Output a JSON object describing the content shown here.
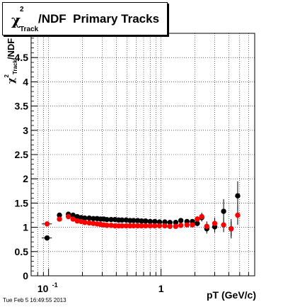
{
  "title": {
    "chi": "χ",
    "sup": "2",
    "sub": "Track",
    "rest": "/NDF  Primary Tracks"
  },
  "xlabel": "pT (GeV/c)",
  "ylabel": {
    "chi": "χ",
    "sup": "2",
    "sub": "Track",
    "rest": "/NDF"
  },
  "timestamp": "Tue Feb  5 16:49:55 2013",
  "chart_data": {
    "type": "scatter",
    "title": "χ2 Track /NDF  Primary Tracks",
    "xlabel": "pT (GeV/c)",
    "ylabel": "χ2 Track /NDF",
    "xscale": "log",
    "xlim": [
      0.07,
      6.8
    ],
    "ylim": [
      0,
      5
    ],
    "grid": true,
    "x_ticks": [
      {
        "value": 0.1,
        "label": "10",
        "exp": "-1"
      },
      {
        "value": 1,
        "label": "1",
        "exp": ""
      }
    ],
    "y_ticks": [
      {
        "value": 0,
        "label": "0"
      },
      {
        "value": 0.5,
        "label": "0.5"
      },
      {
        "value": 1,
        "label": "1"
      },
      {
        "value": 1.5,
        "label": "1.5"
      },
      {
        "value": 2,
        "label": "2"
      },
      {
        "value": 2.5,
        "label": "2.5"
      },
      {
        "value": 3,
        "label": "3"
      },
      {
        "value": 3.5,
        "label": "3.5"
      },
      {
        "value": 4,
        "label": "4"
      },
      {
        "value": 4.5,
        "label": "4.5"
      }
    ],
    "series": [
      {
        "color": "#000000",
        "points": [
          {
            "x": 0.097,
            "y": 0.78,
            "xerr": 0.01
          },
          {
            "x": 0.125,
            "y": 1.25
          },
          {
            "x": 0.15,
            "y": 1.27
          },
          {
            "x": 0.165,
            "y": 1.25
          },
          {
            "x": 0.18,
            "y": 1.22
          },
          {
            "x": 0.195,
            "y": 1.2
          },
          {
            "x": 0.21,
            "y": 1.19
          },
          {
            "x": 0.23,
            "y": 1.19
          },
          {
            "x": 0.25,
            "y": 1.18
          },
          {
            "x": 0.27,
            "y": 1.18
          },
          {
            "x": 0.29,
            "y": 1.17
          },
          {
            "x": 0.31,
            "y": 1.17
          },
          {
            "x": 0.33,
            "y": 1.16
          },
          {
            "x": 0.36,
            "y": 1.16
          },
          {
            "x": 0.39,
            "y": 1.16
          },
          {
            "x": 0.42,
            "y": 1.15
          },
          {
            "x": 0.45,
            "y": 1.15
          },
          {
            "x": 0.49,
            "y": 1.15
          },
          {
            "x": 0.53,
            "y": 1.14
          },
          {
            "x": 0.57,
            "y": 1.14
          },
          {
            "x": 0.62,
            "y": 1.14
          },
          {
            "x": 0.67,
            "y": 1.13
          },
          {
            "x": 0.73,
            "y": 1.13
          },
          {
            "x": 0.8,
            "y": 1.12
          },
          {
            "x": 0.88,
            "y": 1.12
          },
          {
            "x": 0.97,
            "y": 1.11
          },
          {
            "x": 1.08,
            "y": 1.11
          },
          {
            "x": 1.2,
            "y": 1.1
          },
          {
            "x": 1.35,
            "y": 1.1
          },
          {
            "x": 1.5,
            "y": 1.14,
            "yerr": 0.04
          },
          {
            "x": 1.7,
            "y": 1.12,
            "yerr": 0.04
          },
          {
            "x": 1.9,
            "y": 1.12,
            "yerr": 0.05
          },
          {
            "x": 2.1,
            "y": 1.08,
            "yerr": 0.06
          },
          {
            "x": 2.3,
            "y": 1.2,
            "yerr": 0.08
          },
          {
            "x": 2.55,
            "y": 0.97,
            "yerr": 0.1
          },
          {
            "x": 3.0,
            "y": 1.01,
            "yerr": 0.12
          },
          {
            "x": 3.6,
            "y": 1.33,
            "yerr": 0.25
          },
          {
            "x": 4.2,
            "y": 0.97,
            "yerr": 0.2
          },
          {
            "x": 4.8,
            "y": 1.65,
            "yerr": 0.3
          }
        ]
      },
      {
        "color": "#ff0000",
        "points": [
          {
            "x": 0.097,
            "y": 1.07,
            "xerr": 0.01
          },
          {
            "x": 0.125,
            "y": 1.17
          },
          {
            "x": 0.15,
            "y": 1.22
          },
          {
            "x": 0.165,
            "y": 1.17
          },
          {
            "x": 0.18,
            "y": 1.13
          },
          {
            "x": 0.195,
            "y": 1.12
          },
          {
            "x": 0.21,
            "y": 1.1
          },
          {
            "x": 0.23,
            "y": 1.09
          },
          {
            "x": 0.25,
            "y": 1.08
          },
          {
            "x": 0.27,
            "y": 1.07
          },
          {
            "x": 0.29,
            "y": 1.06
          },
          {
            "x": 0.31,
            "y": 1.05
          },
          {
            "x": 0.33,
            "y": 1.04
          },
          {
            "x": 0.36,
            "y": 1.04
          },
          {
            "x": 0.39,
            "y": 1.03
          },
          {
            "x": 0.42,
            "y": 1.03
          },
          {
            "x": 0.45,
            "y": 1.03
          },
          {
            "x": 0.49,
            "y": 1.03
          },
          {
            "x": 0.53,
            "y": 1.03
          },
          {
            "x": 0.57,
            "y": 1.03
          },
          {
            "x": 0.62,
            "y": 1.03
          },
          {
            "x": 0.67,
            "y": 1.03
          },
          {
            "x": 0.73,
            "y": 1.03
          },
          {
            "x": 0.8,
            "y": 1.03
          },
          {
            "x": 0.88,
            "y": 1.03
          },
          {
            "x": 0.97,
            "y": 1.03
          },
          {
            "x": 1.08,
            "y": 1.03
          },
          {
            "x": 1.2,
            "y": 1.02
          },
          {
            "x": 1.35,
            "y": 1.02
          },
          {
            "x": 1.5,
            "y": 1.04,
            "yerr": 0.04
          },
          {
            "x": 1.7,
            "y": 1.05,
            "yerr": 0.04
          },
          {
            "x": 1.9,
            "y": 1.05,
            "yerr": 0.05
          },
          {
            "x": 2.1,
            "y": 1.17,
            "yerr": 0.06
          },
          {
            "x": 2.3,
            "y": 1.22,
            "yerr": 0.08
          },
          {
            "x": 2.55,
            "y": 1.02,
            "yerr": 0.1
          },
          {
            "x": 3.0,
            "y": 1.08,
            "yerr": 0.12
          },
          {
            "x": 3.6,
            "y": 1.05,
            "yerr": 0.15
          },
          {
            "x": 4.2,
            "y": 0.97,
            "yerr": 0.15
          },
          {
            "x": 4.8,
            "y": 1.25,
            "yerr": 0.2
          }
        ]
      }
    ]
  }
}
